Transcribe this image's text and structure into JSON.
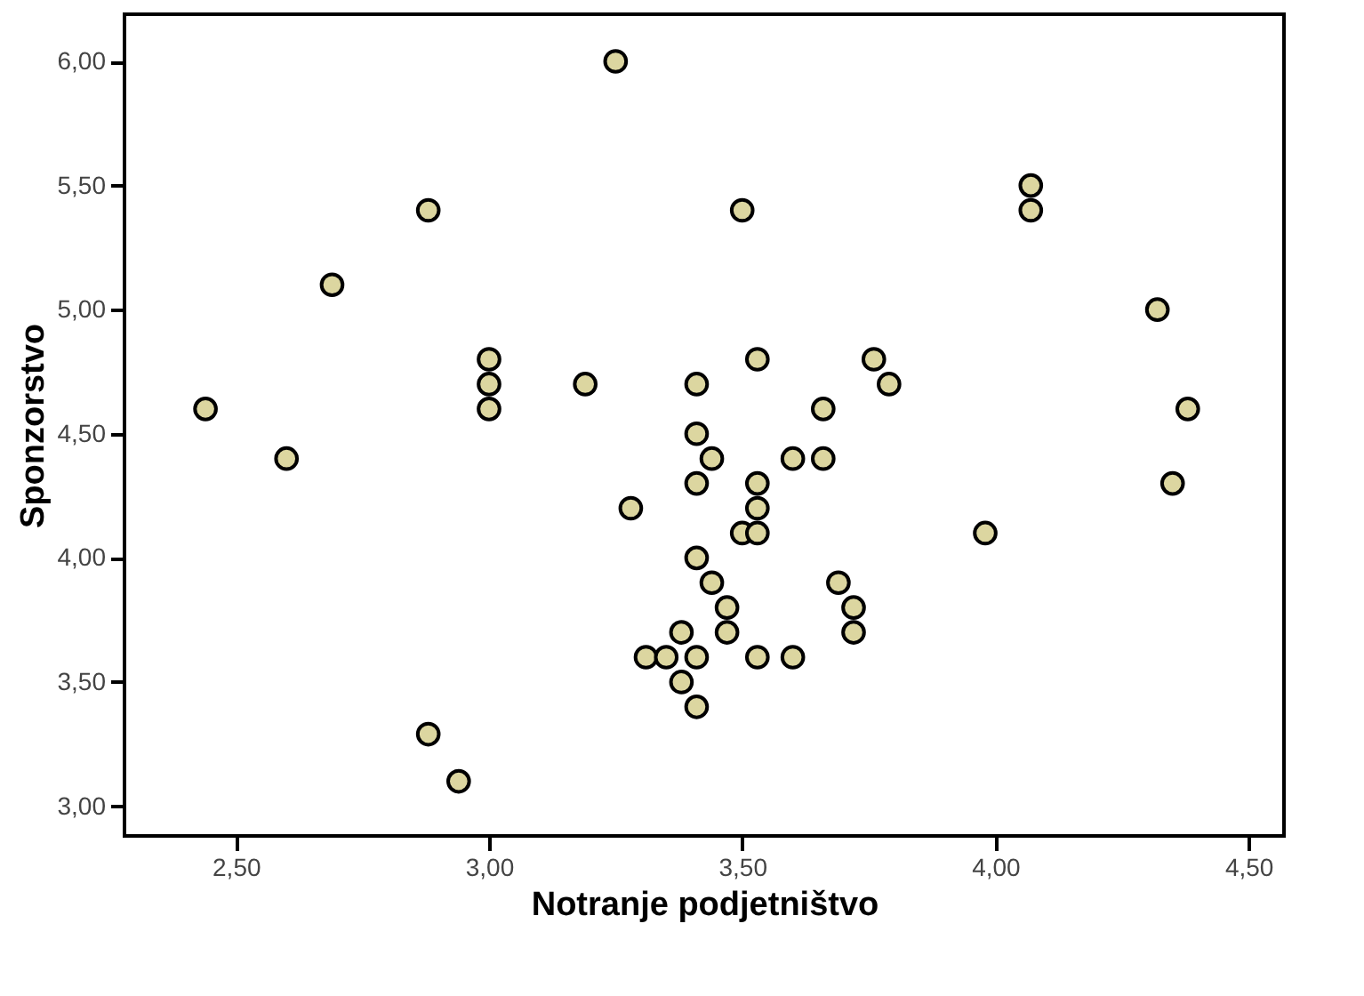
{
  "chart_data": {
    "type": "scatter",
    "xlabel": "Notranje podjetništvo",
    "ylabel": "Sponzorstvo",
    "x": [
      2.44,
      2.6,
      2.69,
      2.88,
      2.88,
      2.94,
      3.0,
      3.0,
      3.0,
      3.19,
      3.25,
      3.28,
      3.41,
      3.41,
      3.41,
      3.44,
      3.41,
      3.38,
      3.44,
      3.38,
      3.31,
      3.35,
      3.41,
      3.41,
      3.5,
      4.07,
      4.07,
      4.32,
      3.53,
      3.76,
      3.79,
      3.66,
      4.38,
      3.6,
      3.66,
      3.53,
      3.53,
      3.5,
      3.53,
      3.98,
      4.35,
      3.47,
      3.47,
      3.69,
      3.72,
      3.72,
      3.53,
      3.6
    ],
    "series": [
      {
        "color": "#dcd6a0",
        "values": [
          4.6,
          4.4,
          5.1,
          5.4,
          3.29,
          3.1,
          4.8,
          4.7,
          4.6,
          4.7,
          6.0,
          4.2,
          4.7,
          4.5,
          4.3,
          4.4,
          4.0,
          3.7,
          3.9,
          3.5,
          3.6,
          3.6,
          3.6,
          3.4,
          5.4,
          5.5,
          5.4,
          5.0,
          4.8,
          4.8,
          4.7,
          4.6,
          4.6,
          4.4,
          4.4,
          4.3,
          4.2,
          4.1,
          4.1,
          4.1,
          4.3,
          3.8,
          3.7,
          3.9,
          3.8,
          3.7,
          3.6,
          3.6
        ]
      }
    ],
    "xlim": [
      2.28,
      4.57
    ],
    "ylim": [
      2.88,
      6.19
    ],
    "xticks": [
      {
        "value": 2.5,
        "label": "2,50"
      },
      {
        "value": 3.0,
        "label": "3,00"
      },
      {
        "value": 3.5,
        "label": "3,50"
      },
      {
        "value": 4.0,
        "label": "4,00"
      },
      {
        "value": 4.5,
        "label": "4,50"
      }
    ],
    "yticks": [
      {
        "value": 3.0,
        "label": "3,00"
      },
      {
        "value": 3.5,
        "label": "3,50"
      },
      {
        "value": 4.0,
        "label": "4,00"
      },
      {
        "value": 4.5,
        "label": "4,50"
      },
      {
        "value": 5.0,
        "label": "5,00"
      },
      {
        "value": 5.5,
        "label": "5,50"
      },
      {
        "value": 6.0,
        "label": "6,00"
      }
    ],
    "marker": "circle",
    "grid": false
  }
}
